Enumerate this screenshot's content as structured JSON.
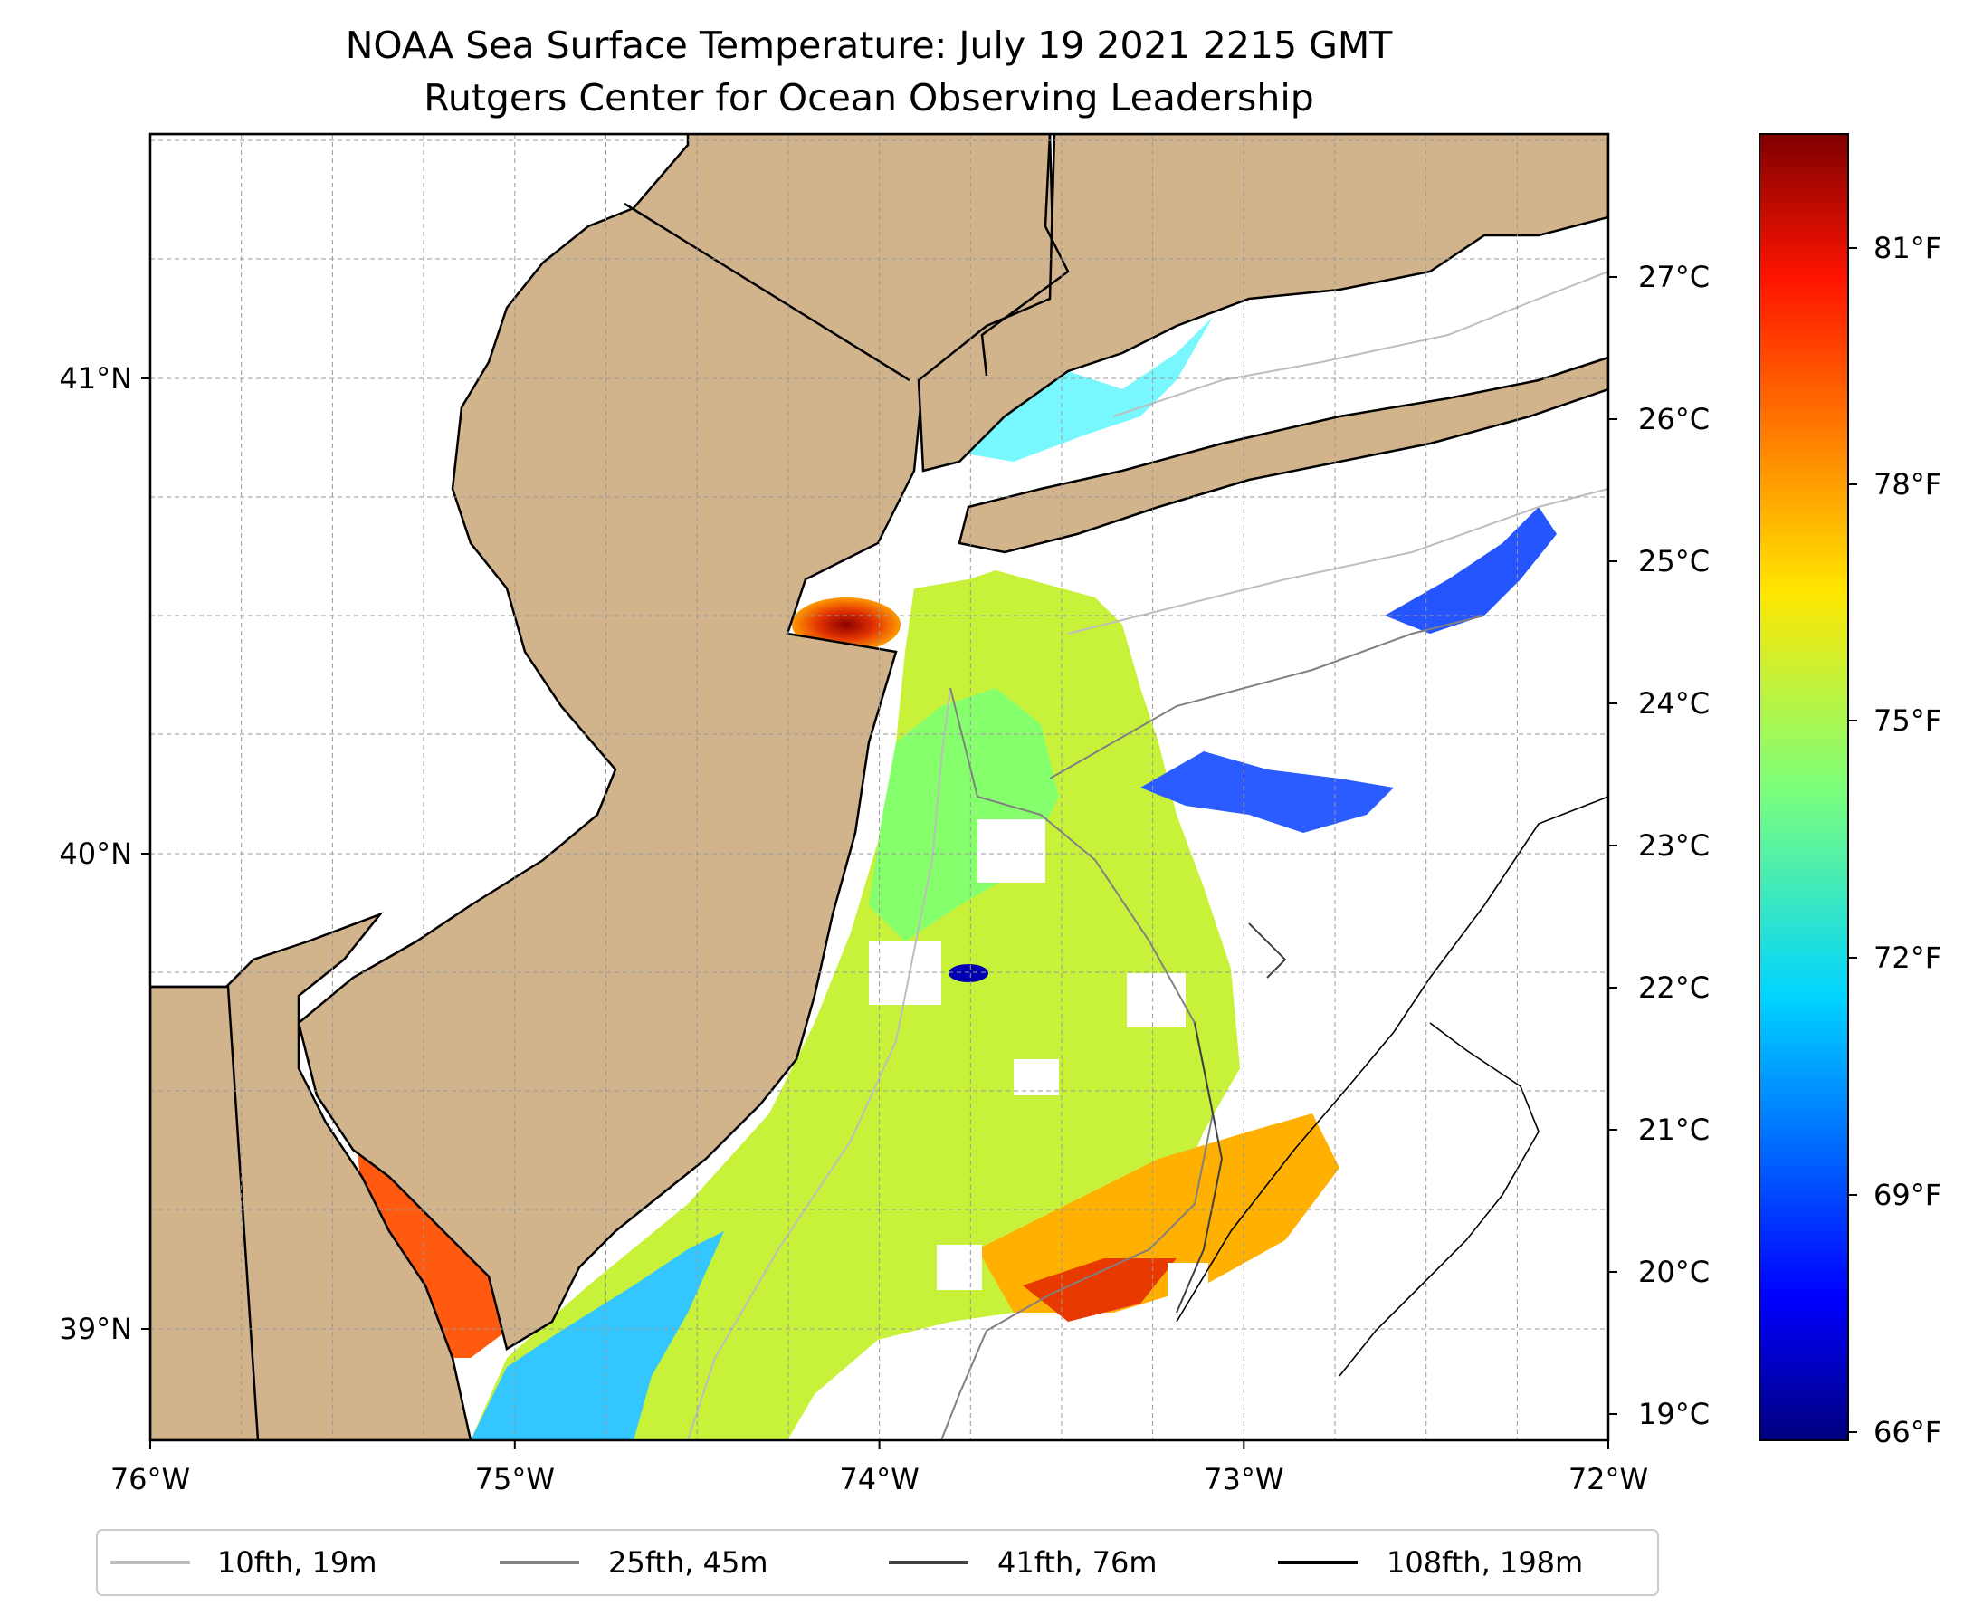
{
  "title": {
    "line1": "NOAA Sea Surface Temperature: July 19 2021 2215 GMT",
    "line2": "Rutgers Center for Ocean Observing Leadership"
  },
  "map": {
    "lon_range": [
      -76,
      -72
    ],
    "lat_range": [
      38.75,
      41.5
    ],
    "lon_ticks": [
      "76°W",
      "75°W",
      "74°W",
      "73°W",
      "72°W"
    ],
    "lat_ticks": [
      "41°N",
      "40°N",
      "39°N"
    ],
    "grid": true,
    "land_color": "#d2b48c",
    "water_color": "#ffffff"
  },
  "colorbar": {
    "colormap": "jet",
    "celsius_ticks": [
      "27°C",
      "26°C",
      "25°C",
      "24°C",
      "23°C",
      "22°C",
      "21°C",
      "20°C",
      "19°C"
    ],
    "fahrenheit_ticks": [
      "81°F",
      "78°F",
      "75°F",
      "72°F",
      "69°F",
      "66°F"
    ]
  },
  "legend": {
    "placement": "bottom",
    "items": [
      {
        "label": "10fth, 19m",
        "color": "#bdbdbd"
      },
      {
        "label": "25fth, 45m",
        "color": "#808080"
      },
      {
        "label": "41fth, 76m",
        "color": "#404040"
      },
      {
        "label": "108fth, 198m",
        "color": "#000000"
      }
    ]
  }
}
